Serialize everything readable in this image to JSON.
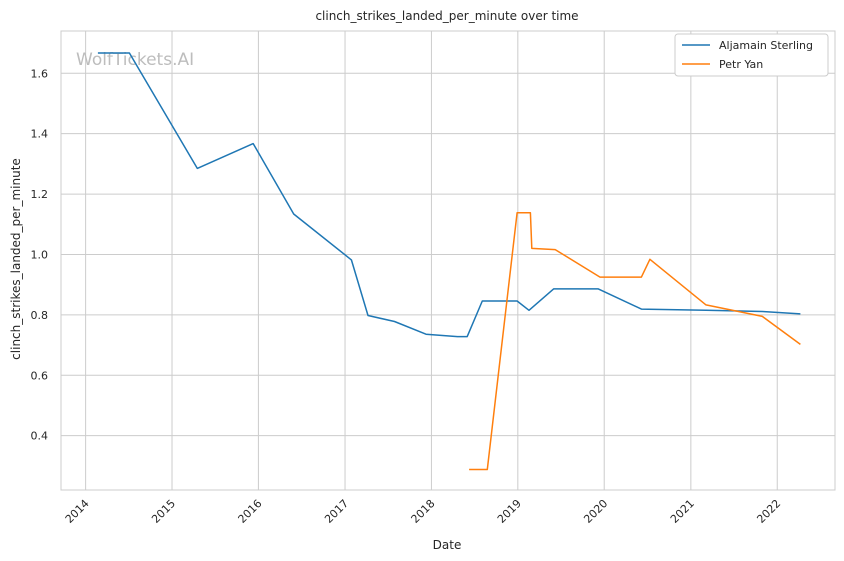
{
  "watermark": "WolfTickets.AI",
  "chart_data": {
    "type": "line",
    "title": "clinch_strikes_landed_per_minute over time",
    "xlabel": "Date",
    "ylabel": "clinch_strikes_landed_per_minute",
    "xlim": [
      "2013-09-19",
      "2022-09-02"
    ],
    "ylim": [
      0.22,
      1.74
    ],
    "xticks": [
      "2014",
      "2015",
      "2016",
      "2017",
      "2018",
      "2019",
      "2020",
      "2021",
      "2022"
    ],
    "yticks": [
      "0.4",
      "0.6",
      "0.8",
      "1.0",
      "1.2",
      "1.4",
      "1.6"
    ],
    "grid": true,
    "legend_position": "top-right",
    "series": [
      {
        "name": "Aljamain Sterling",
        "color": "#1f77b4",
        "points": [
          [
            "2014-02-22",
            1.667
          ],
          [
            "2014-07-05",
            1.667
          ],
          [
            "2015-04-18",
            1.285
          ],
          [
            "2015-12-10",
            1.367
          ],
          [
            "2016-05-29",
            1.134
          ],
          [
            "2017-01-28",
            0.982
          ],
          [
            "2017-04-08",
            0.798
          ],
          [
            "2017-07-29",
            0.778
          ],
          [
            "2017-12-09",
            0.736
          ],
          [
            "2018-04-21",
            0.728
          ],
          [
            "2018-06-01",
            0.728
          ],
          [
            "2018-08-04",
            0.846
          ],
          [
            "2018-12-29",
            0.846
          ],
          [
            "2019-02-17",
            0.815
          ],
          [
            "2019-06-01",
            0.886
          ],
          [
            "2019-12-07",
            0.886
          ],
          [
            "2020-06-06",
            0.819
          ],
          [
            "2021-03-06",
            0.815
          ],
          [
            "2021-10-30",
            0.811
          ],
          [
            "2022-04-09",
            0.803
          ]
        ]
      },
      {
        "name": "Petr Yan",
        "color": "#ff7f0e",
        "points": [
          [
            "2018-06-09",
            0.288
          ],
          [
            "2018-08-25",
            0.288
          ],
          [
            "2018-12-29",
            1.138
          ],
          [
            "2019-02-23",
            1.138
          ],
          [
            "2019-03-01",
            1.02
          ],
          [
            "2019-06-08",
            1.016
          ],
          [
            "2019-12-14",
            0.925
          ],
          [
            "2020-06-06",
            0.925
          ],
          [
            "2020-07-12",
            0.984
          ],
          [
            "2021-03-06",
            0.833
          ],
          [
            "2021-10-30",
            0.795
          ],
          [
            "2022-04-09",
            0.702
          ]
        ]
      }
    ]
  }
}
